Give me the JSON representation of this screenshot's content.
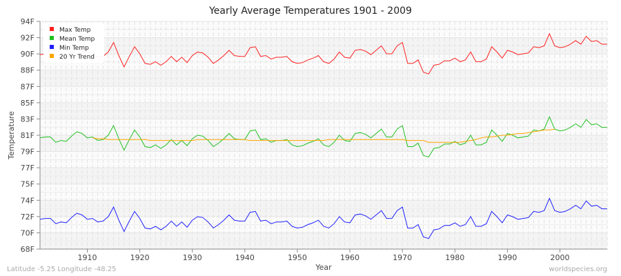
{
  "chart_data": {
    "type": "line",
    "title": "Yearly Average Temperatures 1901 - 2009",
    "xlabel": "Year",
    "ylabel": "Temperature",
    "xlim": [
      1901,
      2009
    ],
    "ylim": [
      68,
      94
    ],
    "x_ticks": [
      1910,
      1920,
      1930,
      1940,
      1950,
      1960,
      1970,
      1980,
      1990,
      2000
    ],
    "y_tick_labels": [
      "68F",
      "70F",
      "72F",
      "74F",
      "75F",
      "77F",
      "79F",
      "81F",
      "83F",
      "85F",
      "87F",
      "88F",
      "90F",
      "92F",
      "94F"
    ],
    "grid": true,
    "legend_position": "top-left",
    "x_start": 1901,
    "series": [
      {
        "name": "Max Temp",
        "color": "#ff2020",
        "start": 1901,
        "values": [
          90.2,
          90.3,
          90.3,
          89.7,
          89.9,
          89.8,
          90.4,
          90.9,
          90.7,
          90.2,
          90.3,
          89.9,
          90.0,
          90.5,
          91.6,
          90.1,
          88.8,
          90.0,
          91.1,
          90.3,
          89.2,
          89.1,
          89.4,
          89.0,
          89.4,
          90.0,
          89.4,
          89.9,
          89.3,
          90.1,
          90.5,
          90.4,
          89.9,
          89.2,
          89.6,
          90.1,
          90.7,
          90.1,
          90.0,
          90.0,
          91.0,
          91.1,
          90.0,
          90.1,
          89.7,
          89.9,
          89.9,
          90.0,
          89.4,
          89.2,
          89.3,
          89.6,
          89.8,
          90.1,
          89.4,
          89.2,
          89.7,
          90.5,
          89.9,
          89.8,
          90.7,
          90.8,
          90.6,
          90.2,
          90.7,
          91.2,
          90.3,
          90.3,
          91.2,
          91.6,
          89.2,
          89.2,
          89.6,
          88.2,
          88.0,
          89.0,
          89.1,
          89.5,
          89.5,
          89.8,
          89.4,
          89.6,
          90.5,
          89.4,
          89.4,
          89.7,
          91.1,
          90.5,
          89.8,
          90.7,
          90.5,
          90.2,
          90.3,
          90.4,
          91.1,
          91.0,
          91.2,
          92.6,
          91.2,
          91.0,
          91.1,
          91.4,
          91.8,
          91.4,
          92.3,
          91.7,
          91.8,
          91.4,
          91.4
        ]
      },
      {
        "name": "Mean Temp",
        "color": "#20c020",
        "start": 1901,
        "values": [
          80.7,
          80.8,
          80.8,
          80.2,
          80.4,
          80.3,
          80.9,
          81.4,
          81.2,
          80.7,
          80.8,
          80.4,
          80.5,
          81.0,
          82.1,
          80.6,
          79.3,
          80.5,
          81.6,
          80.8,
          79.7,
          79.6,
          79.9,
          79.5,
          79.9,
          80.5,
          79.9,
          80.4,
          79.8,
          80.6,
          81.0,
          80.9,
          80.4,
          79.7,
          80.1,
          80.6,
          81.2,
          80.6,
          80.5,
          80.5,
          81.5,
          81.6,
          80.5,
          80.6,
          80.2,
          80.4,
          80.4,
          80.5,
          79.9,
          79.7,
          79.8,
          80.1,
          80.3,
          80.6,
          79.9,
          79.7,
          80.2,
          81.0,
          80.4,
          80.3,
          81.2,
          81.3,
          81.1,
          80.7,
          81.2,
          81.7,
          80.8,
          80.8,
          81.7,
          82.1,
          79.7,
          79.7,
          80.1,
          78.7,
          78.5,
          79.5,
          79.6,
          80.0,
          80.0,
          80.3,
          79.9,
          80.1,
          81.0,
          79.9,
          79.9,
          80.2,
          81.6,
          81.0,
          80.3,
          81.2,
          81.0,
          80.7,
          80.8,
          80.9,
          81.6,
          81.5,
          81.7,
          83.1,
          81.7,
          81.5,
          81.6,
          81.9,
          82.3,
          81.9,
          82.8,
          82.2,
          82.3,
          81.9,
          81.9
        ]
      },
      {
        "name": "Min Temp",
        "color": "#2020ff",
        "start": 1901,
        "values": [
          71.4,
          71.5,
          71.5,
          70.9,
          71.1,
          71.0,
          71.6,
          72.1,
          71.9,
          71.4,
          71.5,
          71.1,
          71.2,
          71.7,
          72.8,
          71.3,
          70.0,
          71.2,
          72.3,
          71.5,
          70.4,
          70.3,
          70.6,
          70.2,
          70.6,
          71.2,
          70.6,
          71.1,
          70.5,
          71.3,
          71.7,
          71.6,
          71.1,
          70.4,
          70.8,
          71.3,
          71.9,
          71.3,
          71.2,
          71.2,
          72.2,
          72.3,
          71.2,
          71.3,
          70.9,
          71.1,
          71.1,
          71.2,
          70.6,
          70.4,
          70.5,
          70.8,
          71.0,
          71.3,
          70.6,
          70.4,
          70.9,
          71.7,
          71.1,
          71.0,
          71.9,
          72.0,
          71.8,
          71.4,
          71.9,
          72.4,
          71.5,
          71.5,
          72.4,
          72.8,
          70.4,
          70.4,
          70.8,
          69.4,
          69.2,
          70.2,
          70.3,
          70.7,
          70.7,
          71.0,
          70.6,
          70.8,
          71.7,
          70.6,
          70.6,
          70.9,
          72.3,
          71.7,
          71.0,
          71.9,
          71.7,
          71.4,
          71.5,
          71.6,
          72.3,
          72.2,
          72.4,
          73.8,
          72.4,
          72.2,
          72.3,
          72.6,
          73.0,
          72.6,
          73.5,
          72.9,
          73.0,
          72.6,
          72.6
        ]
      },
      {
        "name": "20 Yr Trend",
        "color": "#ffa500",
        "start": 1911,
        "values": [
          80.7,
          80.6,
          80.6,
          80.5,
          80.5,
          80.5,
          80.5,
          80.5,
          80.5,
          80.5,
          80.5,
          80.4,
          80.4,
          80.4,
          80.4,
          80.4,
          80.4,
          80.4,
          80.4,
          80.4,
          80.5,
          80.5,
          80.5,
          80.5,
          80.5,
          80.5,
          80.5,
          80.5,
          80.5,
          80.5,
          80.4,
          80.4,
          80.4,
          80.4,
          80.4,
          80.4,
          80.4,
          80.4,
          80.4,
          80.4,
          80.4,
          80.4,
          80.4,
          80.4,
          80.4,
          80.5,
          80.5,
          80.5,
          80.5,
          80.5,
          80.5,
          80.5,
          80.5,
          80.5,
          80.5,
          80.5,
          80.5,
          80.5,
          80.5,
          80.5,
          80.4,
          80.4,
          80.4,
          80.4,
          80.2,
          80.2,
          80.2,
          80.2,
          80.2,
          80.2,
          80.2,
          80.3,
          80.4,
          80.5,
          80.7,
          80.8,
          80.8,
          80.9,
          81.0,
          81.0,
          81.1,
          81.2,
          81.2,
          81.3,
          81.4,
          81.5,
          81.6,
          81.6,
          81.7
        ]
      }
    ]
  },
  "footer": {
    "location": "Latitude -5.25 Longitude -48.25",
    "source": "worldspecies.org"
  }
}
